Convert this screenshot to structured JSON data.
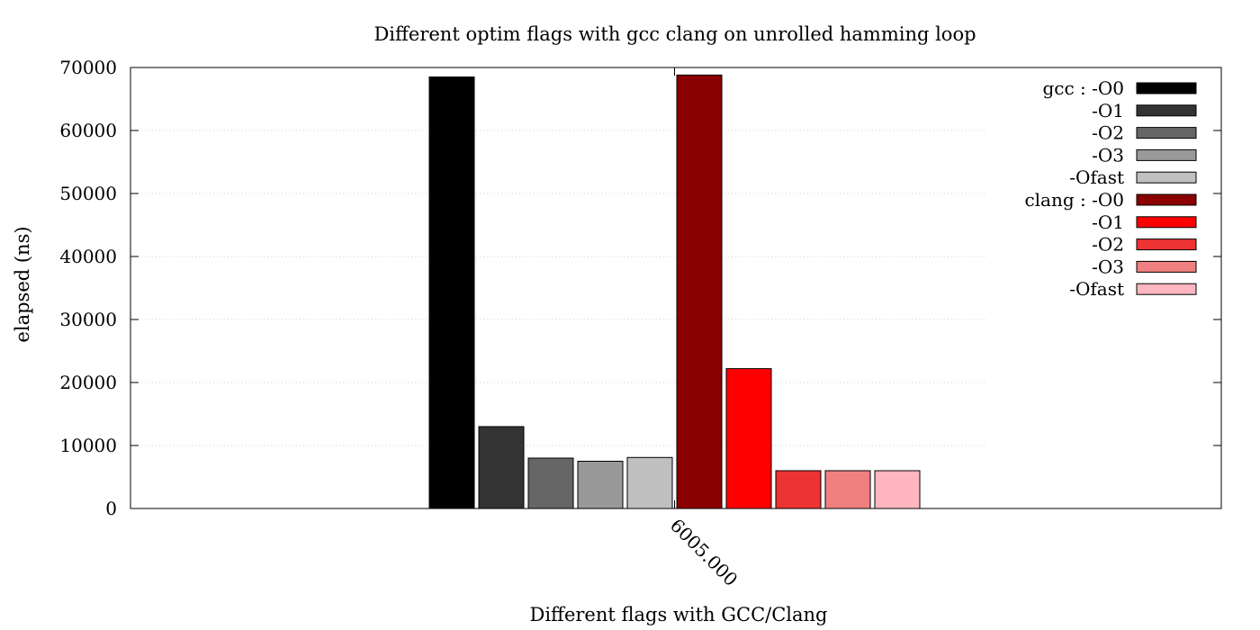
{
  "chart_data": {
    "type": "bar",
    "title": "Different optim flags with gcc  clang on unrolled hamming loop",
    "xlabel": "Different flags with GCC/Clang",
    "ylabel": "elapsed (ns)",
    "categories": [
      "6005.000"
    ],
    "ylim": [
      0,
      70000
    ],
    "yticks": [
      0,
      10000,
      20000,
      30000,
      40000,
      50000,
      60000,
      70000
    ],
    "grid": true,
    "legend_position": "top-right",
    "series": [
      {
        "name": "gcc : -O0",
        "color": "#000000",
        "values": [
          68500
        ]
      },
      {
        "name": "-O1",
        "color": "#333333",
        "values": [
          13000
        ]
      },
      {
        "name": "-O2",
        "color": "#666666",
        "values": [
          8000
        ]
      },
      {
        "name": "-O3",
        "color": "#999999",
        "values": [
          7500
        ]
      },
      {
        "name": "-Ofast",
        "color": "#c0c0c0",
        "values": [
          8100
        ]
      },
      {
        "name": "clang : -O0",
        "color": "#8b0000",
        "values": [
          68800
        ]
      },
      {
        "name": "-O1",
        "color": "#ff0000",
        "values": [
          22200
        ]
      },
      {
        "name": "-O2",
        "color": "#ee3333",
        "values": [
          6000
        ]
      },
      {
        "name": "-O3",
        "color": "#f08080",
        "values": [
          6000
        ]
      },
      {
        "name": "-Ofast",
        "color": "#ffb6c1",
        "values": [
          6000
        ]
      }
    ]
  }
}
